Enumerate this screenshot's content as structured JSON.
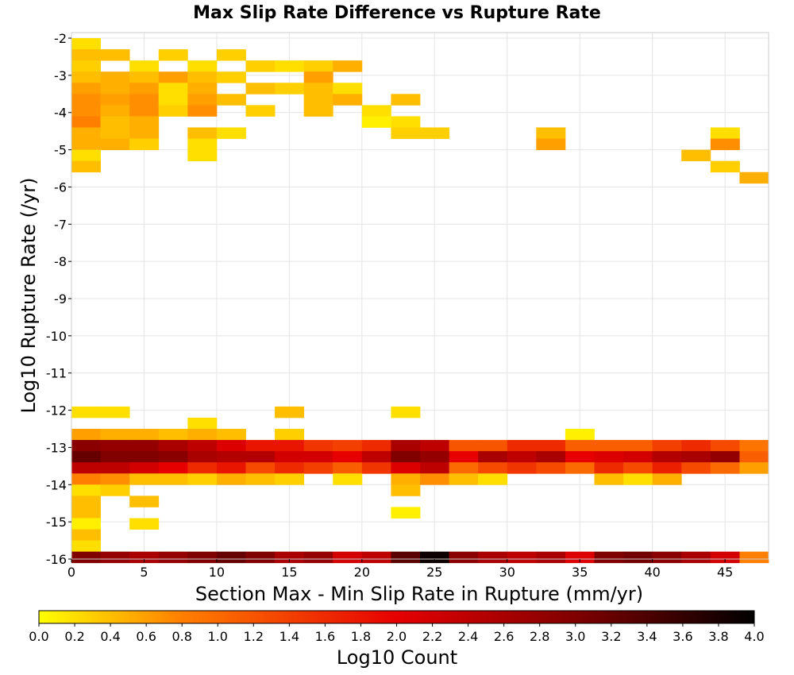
{
  "chart_data": {
    "type": "heatmap",
    "title": "Max Slip Rate Difference vs Rupture Rate",
    "xlabel": "Section Max - Min Slip Rate in Rupture (mm/yr)",
    "ylabel": "Log10 Rupture Rate (/yr)",
    "xlim": [
      0,
      48
    ],
    "ylim": [
      -16,
      -1.85
    ],
    "x_ticks": [
      "0",
      "5",
      "10",
      "15",
      "20",
      "25",
      "30",
      "35",
      "40",
      "45"
    ],
    "y_ticks": [
      "-2",
      "-3",
      "-4",
      "-5",
      "-6",
      "-7",
      "-8",
      "-9",
      "-10",
      "-11",
      "-12",
      "-13",
      "-14",
      "-15",
      "-16"
    ],
    "grid": true,
    "bin_width_x": 2,
    "bin_height_y": 0.3,
    "colorscale": {
      "label": "Log10 Count",
      "range": [
        0,
        4
      ],
      "ticks": [
        "0.0",
        "0.2",
        "0.4",
        "0.6",
        "0.8",
        "1.0",
        "1.2",
        "1.4",
        "1.6",
        "1.8",
        "2.0",
        "2.2",
        "2.4",
        "2.6",
        "2.8",
        "3.0",
        "3.2",
        "3.4",
        "3.6",
        "3.8",
        "4.0"
      ],
      "colors": [
        "#ffff00",
        "#ff7f00",
        "#e60000",
        "#800000",
        "#000000"
      ]
    },
    "cells": [
      [
        1,
        -2.15,
        0.2
      ],
      [
        1,
        -2.45,
        0.4
      ],
      [
        3,
        -2.45,
        0.4
      ],
      [
        7,
        -2.45,
        0.3
      ],
      [
        11,
        -2.45,
        0.3
      ],
      [
        1,
        -2.75,
        0.3
      ],
      [
        5,
        -2.75,
        0.2
      ],
      [
        9,
        -2.75,
        0.2
      ],
      [
        13,
        -2.75,
        0.3
      ],
      [
        15,
        -2.75,
        0.2
      ],
      [
        17,
        -2.75,
        0.3
      ],
      [
        19,
        -2.75,
        0.5
      ],
      [
        1,
        -3.05,
        0.4
      ],
      [
        3,
        -3.05,
        0.5
      ],
      [
        5,
        -3.05,
        0.4
      ],
      [
        7,
        -3.05,
        0.6
      ],
      [
        9,
        -3.05,
        0.4
      ],
      [
        11,
        -3.05,
        0.3
      ],
      [
        17,
        -3.05,
        0.6
      ],
      [
        1,
        -3.35,
        0.6
      ],
      [
        3,
        -3.35,
        0.5
      ],
      [
        5,
        -3.35,
        0.6
      ],
      [
        7,
        -3.35,
        0.2
      ],
      [
        9,
        -3.35,
        0.5
      ],
      [
        13,
        -3.35,
        0.4
      ],
      [
        15,
        -3.35,
        0.3
      ],
      [
        17,
        -3.35,
        0.4
      ],
      [
        19,
        -3.35,
        0.2
      ],
      [
        1,
        -3.65,
        0.7
      ],
      [
        3,
        -3.65,
        0.6
      ],
      [
        5,
        -3.65,
        0.7
      ],
      [
        7,
        -3.65,
        0.2
      ],
      [
        9,
        -3.65,
        0.6
      ],
      [
        11,
        -3.65,
        0.4
      ],
      [
        17,
        -3.65,
        0.4
      ],
      [
        19,
        -3.65,
        0.5
      ],
      [
        23,
        -3.65,
        0.4
      ],
      [
        1,
        -3.95,
        0.7
      ],
      [
        3,
        -3.95,
        0.5
      ],
      [
        5,
        -3.95,
        0.7
      ],
      [
        7,
        -3.95,
        0.3
      ],
      [
        9,
        -3.95,
        0.7
      ],
      [
        13,
        -3.95,
        0.3
      ],
      [
        17,
        -3.95,
        0.4
      ],
      [
        21,
        -3.95,
        0.2
      ],
      [
        1,
        -4.25,
        0.8
      ],
      [
        3,
        -4.25,
        0.4
      ],
      [
        5,
        -4.25,
        0.5
      ],
      [
        21,
        -4.25,
        0.1
      ],
      [
        23,
        -4.25,
        0.2
      ],
      [
        1,
        -4.55,
        0.5
      ],
      [
        3,
        -4.55,
        0.4
      ],
      [
        5,
        -4.55,
        0.5
      ],
      [
        9,
        -4.55,
        0.4
      ],
      [
        11,
        -4.55,
        0.2
      ],
      [
        23,
        -4.55,
        0.3
      ],
      [
        25,
        -4.55,
        0.3
      ],
      [
        33,
        -4.55,
        0.4
      ],
      [
        45,
        -4.55,
        0.2
      ],
      [
        1,
        -4.85,
        0.5
      ],
      [
        3,
        -4.85,
        0.5
      ],
      [
        5,
        -4.85,
        0.3
      ],
      [
        9,
        -4.85,
        0.2
      ],
      [
        33,
        -4.85,
        0.6
      ],
      [
        45,
        -4.85,
        0.7
      ],
      [
        1,
        -5.15,
        0.2
      ],
      [
        9,
        -5.15,
        0.2
      ],
      [
        43,
        -5.15,
        0.4
      ],
      [
        1,
        -5.45,
        0.4
      ],
      [
        45,
        -5.45,
        0.3
      ],
      [
        47,
        -5.75,
        0.5
      ],
      [
        1,
        -12.05,
        0.2
      ],
      [
        3,
        -12.05,
        0.2
      ],
      [
        15,
        -12.05,
        0.4
      ],
      [
        23,
        -12.05,
        0.2
      ],
      [
        9,
        -12.35,
        0.2
      ],
      [
        1,
        -12.65,
        0.6
      ],
      [
        3,
        -12.65,
        0.5
      ],
      [
        5,
        -12.65,
        0.5
      ],
      [
        7,
        -12.65,
        0.4
      ],
      [
        9,
        -12.65,
        0.5
      ],
      [
        11,
        -12.65,
        0.4
      ],
      [
        15,
        -12.65,
        0.3
      ],
      [
        35,
        -12.65,
        0.1
      ],
      [
        1,
        -12.95,
        2.9
      ],
      [
        3,
        -12.95,
        2.8
      ],
      [
        5,
        -12.95,
        2.8
      ],
      [
        7,
        -12.95,
        2.6
      ],
      [
        9,
        -12.95,
        2.4
      ],
      [
        11,
        -12.95,
        2.1
      ],
      [
        13,
        -12.95,
        1.8
      ],
      [
        15,
        -12.95,
        1.8
      ],
      [
        17,
        -12.95,
        1.5
      ],
      [
        19,
        -12.95,
        1.4
      ],
      [
        21,
        -12.95,
        1.6
      ],
      [
        23,
        -12.95,
        2.6
      ],
      [
        25,
        -12.95,
        2.4
      ],
      [
        27,
        -12.95,
        1.2
      ],
      [
        29,
        -12.95,
        1.2
      ],
      [
        31,
        -12.95,
        1.6
      ],
      [
        33,
        -12.95,
        1.6
      ],
      [
        35,
        -12.95,
        1.1
      ],
      [
        37,
        -12.95,
        1.1
      ],
      [
        39,
        -12.95,
        1.1
      ],
      [
        41,
        -12.95,
        1.4
      ],
      [
        43,
        -12.95,
        1.6
      ],
      [
        45,
        -12.95,
        1.3
      ],
      [
        47,
        -12.95,
        0.9
      ],
      [
        1,
        -13.25,
        3.2
      ],
      [
        3,
        -13.25,
        3.0
      ],
      [
        5,
        -13.25,
        3.0
      ],
      [
        7,
        -13.25,
        2.9
      ],
      [
        9,
        -13.25,
        2.6
      ],
      [
        11,
        -13.25,
        2.5
      ],
      [
        13,
        -13.25,
        2.5
      ],
      [
        15,
        -13.25,
        2.2
      ],
      [
        17,
        -13.25,
        2.2
      ],
      [
        19,
        -13.25,
        2.0
      ],
      [
        21,
        -13.25,
        2.4
      ],
      [
        23,
        -13.25,
        3.0
      ],
      [
        25,
        -13.25,
        2.8
      ],
      [
        27,
        -13.25,
        2.0
      ],
      [
        29,
        -13.25,
        2.6
      ],
      [
        31,
        -13.25,
        2.4
      ],
      [
        33,
        -13.25,
        2.6
      ],
      [
        35,
        -13.25,
        2.0
      ],
      [
        37,
        -13.25,
        2.1
      ],
      [
        39,
        -13.25,
        2.2
      ],
      [
        41,
        -13.25,
        2.5
      ],
      [
        43,
        -13.25,
        2.6
      ],
      [
        45,
        -13.25,
        2.8
      ],
      [
        47,
        -13.25,
        1.1
      ],
      [
        1,
        -13.55,
        2.4
      ],
      [
        3,
        -13.55,
        2.4
      ],
      [
        5,
        -13.55,
        2.2
      ],
      [
        7,
        -13.55,
        2.0
      ],
      [
        9,
        -13.55,
        1.6
      ],
      [
        11,
        -13.55,
        1.8
      ],
      [
        13,
        -13.55,
        1.3
      ],
      [
        15,
        -13.55,
        1.6
      ],
      [
        17,
        -13.55,
        1.4
      ],
      [
        19,
        -13.55,
        1.1
      ],
      [
        21,
        -13.55,
        1.5
      ],
      [
        23,
        -13.55,
        2.1
      ],
      [
        25,
        -13.55,
        2.4
      ],
      [
        27,
        -13.55,
        1.0
      ],
      [
        29,
        -13.55,
        1.3
      ],
      [
        31,
        -13.55,
        1.5
      ],
      [
        33,
        -13.55,
        1.3
      ],
      [
        35,
        -13.55,
        1.0
      ],
      [
        37,
        -13.55,
        1.6
      ],
      [
        39,
        -13.55,
        1.3
      ],
      [
        41,
        -13.55,
        1.7
      ],
      [
        43,
        -13.55,
        1.3
      ],
      [
        45,
        -13.55,
        1.0
      ],
      [
        47,
        -13.55,
        0.6
      ],
      [
        1,
        -13.85,
        0.8
      ],
      [
        3,
        -13.85,
        0.7
      ],
      [
        5,
        -13.85,
        0.4
      ],
      [
        7,
        -13.85,
        0.4
      ],
      [
        9,
        -13.85,
        0.3
      ],
      [
        11,
        -13.85,
        0.5
      ],
      [
        13,
        -13.85,
        0.4
      ],
      [
        15,
        -13.85,
        0.3
      ],
      [
        19,
        -13.85,
        0.2
      ],
      [
        23,
        -13.85,
        0.5
      ],
      [
        25,
        -13.85,
        0.7
      ],
      [
        27,
        -13.85,
        0.4
      ],
      [
        29,
        -13.85,
        0.2
      ],
      [
        37,
        -13.85,
        0.4
      ],
      [
        39,
        -13.85,
        0.2
      ],
      [
        41,
        -13.85,
        0.5
      ],
      [
        1,
        -14.15,
        0.2
      ],
      [
        3,
        -14.15,
        0.3
      ],
      [
        23,
        -14.15,
        0.4
      ],
      [
        1,
        -14.45,
        0.4
      ],
      [
        5,
        -14.45,
        0.4
      ],
      [
        1,
        -14.75,
        0.4
      ],
      [
        23,
        -14.75,
        0.1
      ],
      [
        1,
        -15.05,
        0.1
      ],
      [
        5,
        -15.05,
        0.2
      ],
      [
        1,
        -15.35,
        0.4
      ],
      [
        1,
        -15.65,
        0.2
      ],
      [
        1,
        -15.95,
        3.0
      ],
      [
        3,
        -15.95,
        2.8
      ],
      [
        5,
        -15.95,
        2.6
      ],
      [
        7,
        -15.95,
        2.8
      ],
      [
        9,
        -15.95,
        3.0
      ],
      [
        11,
        -15.95,
        3.2
      ],
      [
        13,
        -15.95,
        3.0
      ],
      [
        15,
        -15.95,
        2.6
      ],
      [
        17,
        -15.95,
        2.8
      ],
      [
        19,
        -15.95,
        2.2
      ],
      [
        21,
        -15.95,
        2.4
      ],
      [
        23,
        -15.95,
        3.3
      ],
      [
        25,
        -15.95,
        3.9
      ],
      [
        27,
        -15.95,
        2.9
      ],
      [
        29,
        -15.95,
        2.6
      ],
      [
        31,
        -15.95,
        2.4
      ],
      [
        33,
        -15.95,
        2.6
      ],
      [
        35,
        -15.95,
        2.1
      ],
      [
        37,
        -15.95,
        3.0
      ],
      [
        39,
        -15.95,
        3.1
      ],
      [
        41,
        -15.95,
        2.9
      ],
      [
        43,
        -15.95,
        2.6
      ],
      [
        45,
        -15.95,
        2.2
      ],
      [
        47,
        -15.95,
        0.8
      ]
    ]
  }
}
